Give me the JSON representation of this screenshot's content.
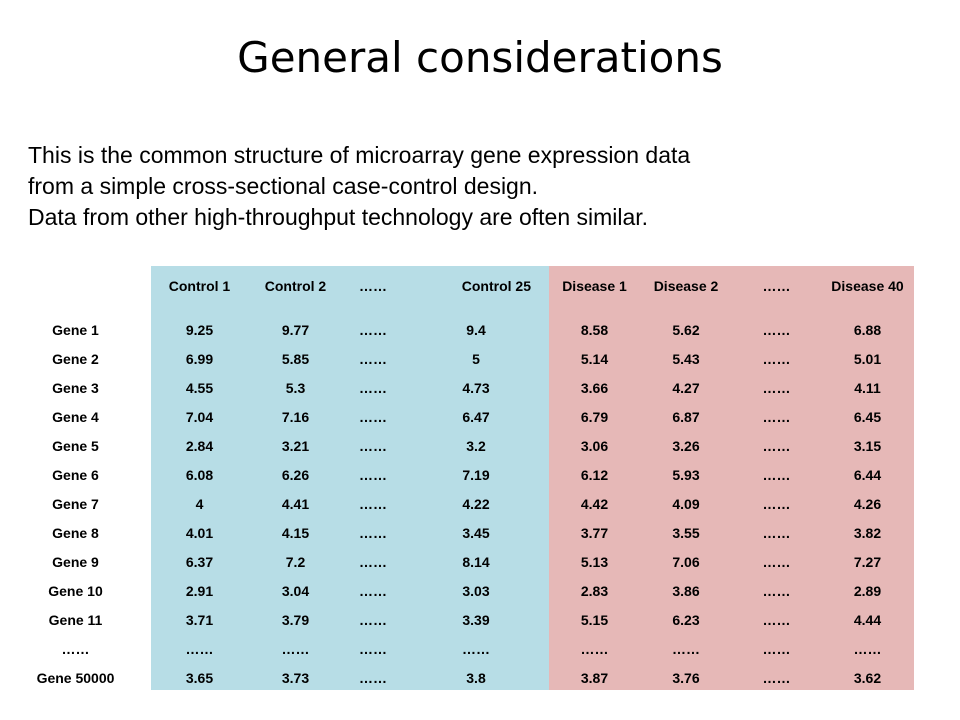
{
  "slide": {
    "title": "General considerations",
    "intro_lines": [
      "This is the common structure of microarray gene expression data",
      "from a simple cross-sectional case-control design.",
      "Data from other high-throughput technology are often similar."
    ]
  },
  "table": {
    "columns": [
      "Control 1",
      "Control 2",
      "……",
      "Control 25",
      "Disease 1",
      "Disease 2",
      "……",
      "Disease 40"
    ],
    "rows": [
      {
        "label": "Gene 1",
        "cells": [
          "9.25",
          "9.77",
          "……",
          "9.4",
          "8.58",
          "5.62",
          "……",
          "6.88"
        ]
      },
      {
        "label": "Gene 2",
        "cells": [
          "6.99",
          "5.85",
          "……",
          "5",
          "5.14",
          "5.43",
          "……",
          "5.01"
        ]
      },
      {
        "label": "Gene 3",
        "cells": [
          "4.55",
          "5.3",
          "……",
          "4.73",
          "3.66",
          "4.27",
          "……",
          "4.11"
        ]
      },
      {
        "label": "Gene 4",
        "cells": [
          "7.04",
          "7.16",
          "……",
          "6.47",
          "6.79",
          "6.87",
          "……",
          "6.45"
        ]
      },
      {
        "label": "Gene 5",
        "cells": [
          "2.84",
          "3.21",
          "……",
          "3.2",
          "3.06",
          "3.26",
          "……",
          "3.15"
        ]
      },
      {
        "label": "Gene 6",
        "cells": [
          "6.08",
          "6.26",
          "……",
          "7.19",
          "6.12",
          "5.93",
          "……",
          "6.44"
        ]
      },
      {
        "label": "Gene 7",
        "cells": [
          "4",
          "4.41",
          "……",
          "4.22",
          "4.42",
          "4.09",
          "……",
          "4.26"
        ]
      },
      {
        "label": "Gene 8",
        "cells": [
          "4.01",
          "4.15",
          "……",
          "3.45",
          "3.77",
          "3.55",
          "……",
          "3.82"
        ]
      },
      {
        "label": "Gene 9",
        "cells": [
          "6.37",
          "7.2",
          "……",
          "8.14",
          "5.13",
          "7.06",
          "……",
          "7.27"
        ]
      },
      {
        "label": "Gene 10",
        "cells": [
          "2.91",
          "3.04",
          "……",
          "3.03",
          "2.83",
          "3.86",
          "……",
          "2.89"
        ]
      },
      {
        "label": "Gene 11",
        "cells": [
          "3.71",
          "3.79",
          "……",
          "3.39",
          "5.15",
          "6.23",
          "……",
          "4.44"
        ]
      },
      {
        "label": "……",
        "cells": [
          "……",
          "……",
          "……",
          "……",
          "……",
          "……",
          "……",
          "……"
        ]
      },
      {
        "label": "Gene 50000",
        "cells": [
          "3.65",
          "3.73",
          "……",
          "3.8",
          "3.87",
          "3.76",
          "……",
          "3.62"
        ]
      }
    ]
  },
  "colors": {
    "control_group_bg": "#b7dde6",
    "disease_group_bg": "#e6b8b7",
    "text": "#000000",
    "background": "#ffffff"
  }
}
